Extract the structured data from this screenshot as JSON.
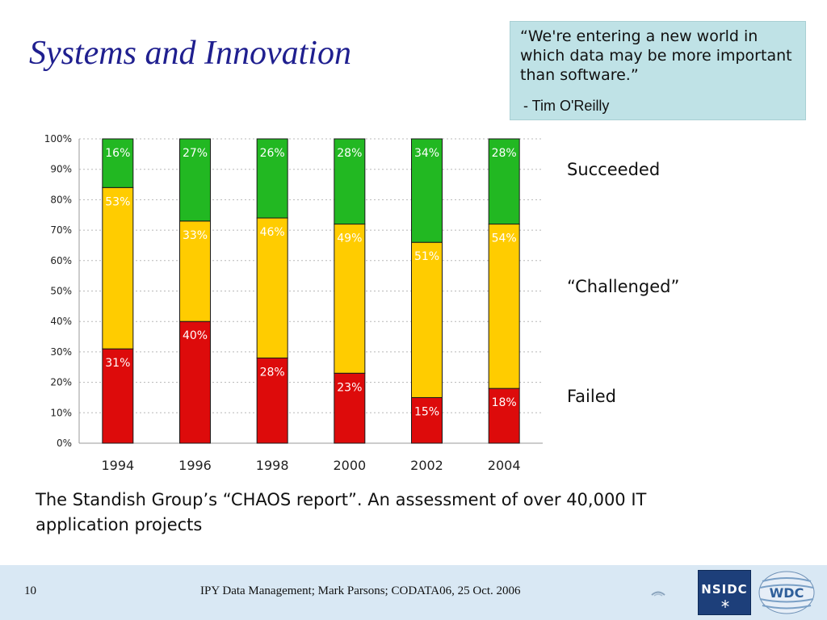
{
  "slide": {
    "title": "Systems and Innovation",
    "quote": "“We're entering a new world in which data may be more important than software.”",
    "quote_author": "- Tim O'Reilly",
    "caption": "The Standish Group’s “CHAOS report”. An assessment of over 40,000 IT application projects",
    "legend_labels": {
      "succeeded": "Succeeded",
      "challenged": "“Challenged”",
      "failed": "Failed"
    },
    "footer": {
      "page_number": "10",
      "text": "IPY Data Management; Mark Parsons; CODATA06, 25 Oct. 2006",
      "logo1": "NSIDC",
      "logo2": "WDC"
    }
  },
  "chart_data": {
    "type": "bar",
    "stacked": true,
    "categories": [
      "1994",
      "1996",
      "1998",
      "2000",
      "2002",
      "2004"
    ],
    "series": [
      {
        "name": "Failed",
        "values": [
          31,
          40,
          28,
          23,
          15,
          18
        ],
        "labels": [
          "31%",
          "40%",
          "28%",
          "23%",
          "15%",
          "18%"
        ],
        "color": "#dd0b0b"
      },
      {
        "name": "“Challenged”",
        "values": [
          53,
          33,
          46,
          49,
          51,
          54
        ],
        "labels": [
          "53%",
          "33%",
          "46%",
          "49%",
          "51%",
          "54%"
        ],
        "color": "#ffcc00"
      },
      {
        "name": "Succeeded",
        "values": [
          16,
          27,
          26,
          28,
          34,
          28
        ],
        "labels": [
          "16%",
          "27%",
          "26%",
          "28%",
          "34%",
          "28%"
        ],
        "color": "#22b822"
      }
    ],
    "ylim": [
      0,
      100
    ],
    "yticks": [
      "0%",
      "10%",
      "20%",
      "30%",
      "40%",
      "50%",
      "60%",
      "70%",
      "80%",
      "90%",
      "100%"
    ],
    "grid": true,
    "legend_placement": "right"
  }
}
